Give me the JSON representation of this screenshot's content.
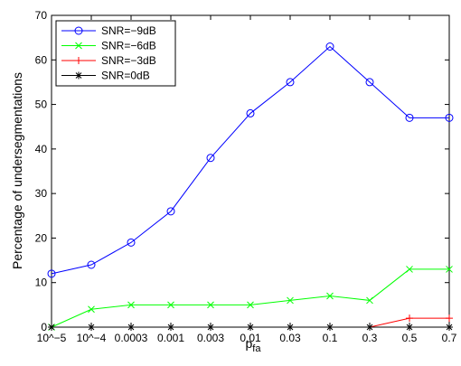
{
  "chart_data": {
    "type": "line",
    "categories": [
      "10^−5",
      "10^−4",
      "0.0003",
      "0.001",
      "0.003",
      "0.01",
      "0.03",
      "0.1",
      "0.3",
      "0.5",
      "0.7"
    ],
    "series": [
      {
        "name": "SNR=−9dB",
        "color": "#0000ff",
        "marker": "circle",
        "values": [
          12,
          14,
          19,
          26,
          38,
          48,
          55,
          63,
          55,
          47,
          47
        ]
      },
      {
        "name": "SNR=−6dB",
        "color": "#00ff00",
        "marker": "x",
        "values": [
          0,
          4,
          5,
          5,
          5,
          5,
          6,
          7,
          6,
          13,
          13
        ]
      },
      {
        "name": "SNR=−3dB",
        "color": "#ff0000",
        "marker": "plus",
        "values": [
          0,
          0,
          0,
          0,
          0,
          0,
          0,
          0,
          0,
          2,
          2
        ]
      },
      {
        "name": "SNR=0dB",
        "color": "#000000",
        "marker": "star",
        "values": [
          0,
          0,
          0,
          0,
          0,
          0,
          0,
          0,
          0,
          0,
          0
        ]
      }
    ],
    "xlabel": "p",
    "xlabel_sub": "fa",
    "ylabel": "Percentage of undersegmentations",
    "ylim": [
      0,
      70
    ],
    "yticks": [
      0,
      10,
      20,
      30,
      40,
      50,
      60,
      70
    ],
    "grid": false,
    "legend_position": "top-left"
  }
}
